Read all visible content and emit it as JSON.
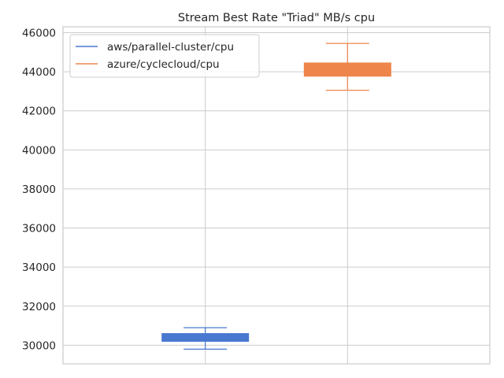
{
  "chart_data": {
    "type": "box",
    "title": "Stream Best Rate \"Triad\" MB/s cpu",
    "xlabel": "",
    "ylabel": "",
    "ylim": [
      29050,
      46300
    ],
    "yticks": [
      30000,
      32000,
      34000,
      36000,
      38000,
      40000,
      42000,
      44000,
      46000
    ],
    "grid": true,
    "legend_position": "top-left",
    "series": [
      {
        "name": "aws/parallel-cluster/cpu",
        "color": "#4878d0",
        "whisker_low": 29800,
        "q1": 30200,
        "q3": 30600,
        "whisker_high": 30900
      },
      {
        "name": "azure/cyclecloud/cpu",
        "color": "#ee854a",
        "whisker_low": 43050,
        "q1": 43770,
        "q3": 44450,
        "whisker_high": 45450
      }
    ]
  }
}
